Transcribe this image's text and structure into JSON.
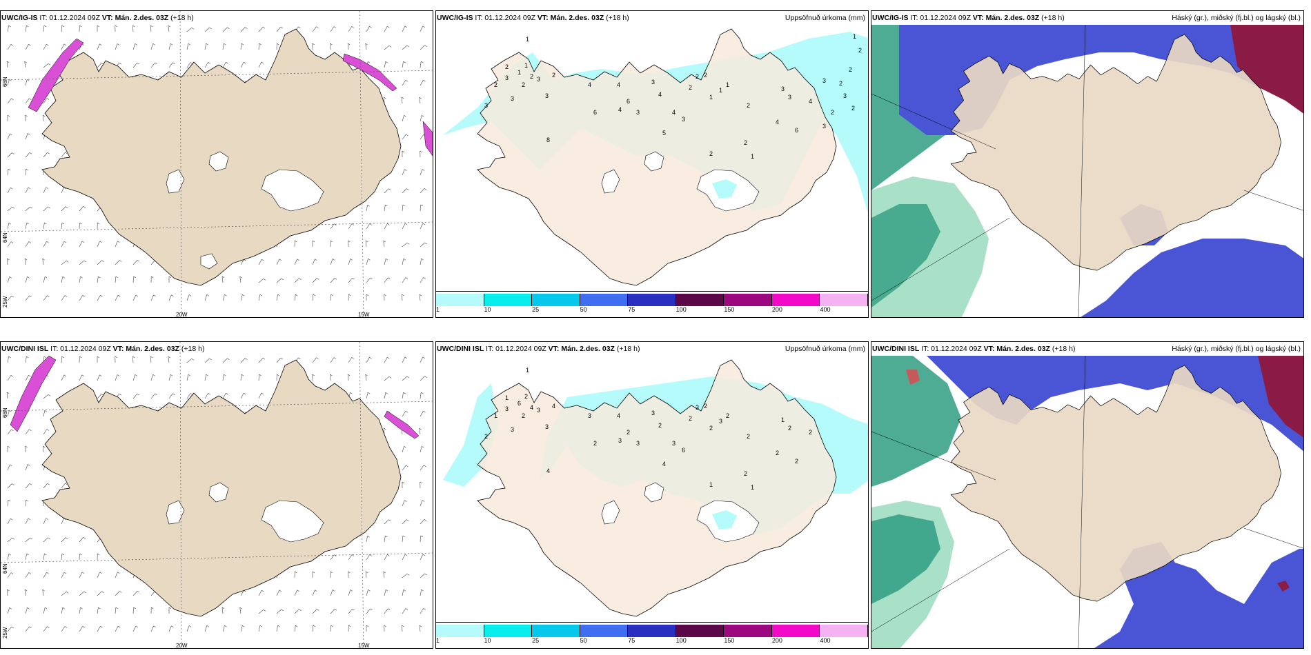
{
  "colors": {
    "land": "#e8d9c3",
    "precip_light": "#b6fbfb",
    "cloud_high": "#2f9e82",
    "cloud_mid": "#4a55d6",
    "cloud_low_dark": "#8a1b45",
    "pink": "#d94fd6"
  },
  "rows": [
    {
      "wind": {
        "model": "UWC/IG-IS",
        "it": "IT: 01.12.2024 09Z",
        "vt": "VT: Mán. 2.des. 03Z",
        "lead": "(+18 h)"
      },
      "precip": {
        "model": "UWC/IG-IS",
        "it": "IT: 01.12.2024 09Z",
        "vt": "VT: Mán. 2.des. 03Z",
        "lead": "(+18 h)",
        "right_title": "Uppsöfnuð úrkoma (mm)"
      },
      "cloud": {
        "model": "UWC/IG-IS",
        "it": "IT: 01.12.2024 09Z",
        "vt": "VT: Mán. 2.des. 03Z",
        "lead": "(+18 h)",
        "right_title": "Háský (gr.), miðský (fj.bl.) og lágský (bl.)"
      }
    },
    {
      "wind": {
        "model": "UWC/DINI ISL",
        "it": "IT: 01.12.2024 09Z",
        "vt": "VT: Mán. 2.des. 03Z",
        "lead": "(+18 h)"
      },
      "precip": {
        "model": "UWC/DINI ISL",
        "it": "IT: 01.12.2024 09Z",
        "vt": "VT: Mán. 2.des. 03Z",
        "lead": "(+18 h)",
        "right_title": "Uppsöfnuð úrkoma (mm)"
      },
      "cloud": {
        "model": "UWC/DINI ISL",
        "it": "IT: 01.12.2024 09Z",
        "vt": "VT: Mán. 2.des. 03Z",
        "lead": "(+18 h)",
        "right_title": "Háský (gr.), miðský (fj.bl.) og lágský (bl.)"
      }
    }
  ],
  "axis": {
    "lon_20": "20W",
    "lon_15": "15W",
    "lon_25": "25W",
    "lat_66": "66N",
    "lat_64": "64N"
  },
  "precip_scale": {
    "ticks": [
      "1",
      "10",
      "25",
      "50",
      "75",
      "100",
      "150",
      "200",
      "400"
    ],
    "colors": [
      "#b6fbfb",
      "#08ecec",
      "#05c8eb",
      "#3f6ef0",
      "#2a2fc0",
      "#5a0848",
      "#9c087f",
      "#f20ac8",
      "#f4b2f2"
    ]
  },
  "precip_labels_top": [
    "1",
    "3",
    "2",
    "2",
    "3",
    "1",
    "2",
    "3",
    "1",
    "2",
    "3",
    "2",
    "3",
    "8",
    "4",
    "6",
    "4",
    "4",
    "6",
    "3",
    "3",
    "4",
    "5",
    "4",
    "3",
    "2",
    "2",
    "2",
    "1",
    "2",
    "1",
    "1",
    "2",
    "2",
    "1",
    "4",
    "3",
    "3",
    "6",
    "4",
    "3",
    "3",
    "2",
    "2",
    "3",
    "2",
    "2",
    "1",
    "2"
  ],
  "precip_labels_bottom": [
    "1",
    "2",
    "1",
    "1",
    "3",
    "6",
    "2",
    "3",
    "2",
    "4",
    "3",
    "4",
    "3",
    "4",
    "3",
    "2",
    "4",
    "3",
    "2",
    "3",
    "3",
    "2",
    "4",
    "3",
    "6",
    "2",
    "3",
    "2",
    "2",
    "1",
    "3",
    "2",
    "2",
    "2",
    "1",
    "2",
    "1",
    "2",
    "2",
    "2"
  ]
}
